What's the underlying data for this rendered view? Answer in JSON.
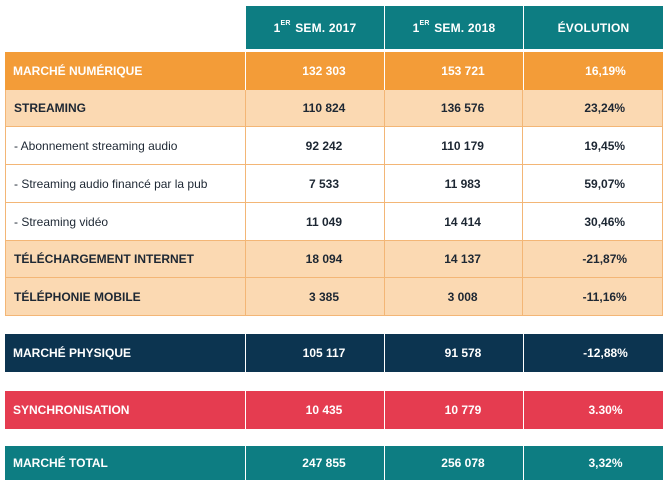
{
  "header": {
    "col1": {
      "sup": "ER",
      "pre": "1",
      "label": "SEM. 2017"
    },
    "col2": {
      "sup": "ER",
      "pre": "1",
      "label": "SEM. 2018"
    },
    "col3": "ÉVOLUTION"
  },
  "rows": [
    {
      "label": "MARCHÉ NUMÉRIQUE",
      "v2017": "132 303",
      "v2018": "153 721",
      "evo": "16,19%"
    },
    {
      "label": "STREAMING",
      "v2017": "110 824",
      "v2018": "136 576",
      "evo": "23,24%"
    },
    {
      "label": "- Abonnement streaming audio",
      "v2017": "92 242",
      "v2018": "110 179",
      "evo": "19,45%"
    },
    {
      "label": "- Streaming audio financé par la pub",
      "v2017": "7 533",
      "v2018": "11 983",
      "evo": "59,07%"
    },
    {
      "label": "- Streaming vidéo",
      "v2017": "11 049",
      "v2018": "14 414",
      "evo": "30,46%"
    },
    {
      "label": "TÉLÉCHARGEMENT INTERNET",
      "v2017": "18 094",
      "v2018": "14 137",
      "evo": "-21,87%"
    },
    {
      "label": "TÉLÉPHONIE MOBILE",
      "v2017": "3 385",
      "v2018": "3 008",
      "evo": "-11,16%"
    },
    {
      "label": "MARCHÉ PHYSIQUE",
      "v2017": "105 117",
      "v2018": "91 578",
      "evo": "-12,88%"
    },
    {
      "label": "SYNCHRONISATION",
      "v2017": "10 435",
      "v2018": "10 779",
      "evo": "3.30%"
    },
    {
      "label": "MARCHÉ TOTAL",
      "v2017": "247 855",
      "v2018": "256 078",
      "evo": "3,32%"
    }
  ],
  "colors": {
    "teal": "#0d7d82",
    "orange": "#f39c38",
    "beige": "#fbd9b2",
    "navy": "#0c3450",
    "red": "#e53c50"
  }
}
